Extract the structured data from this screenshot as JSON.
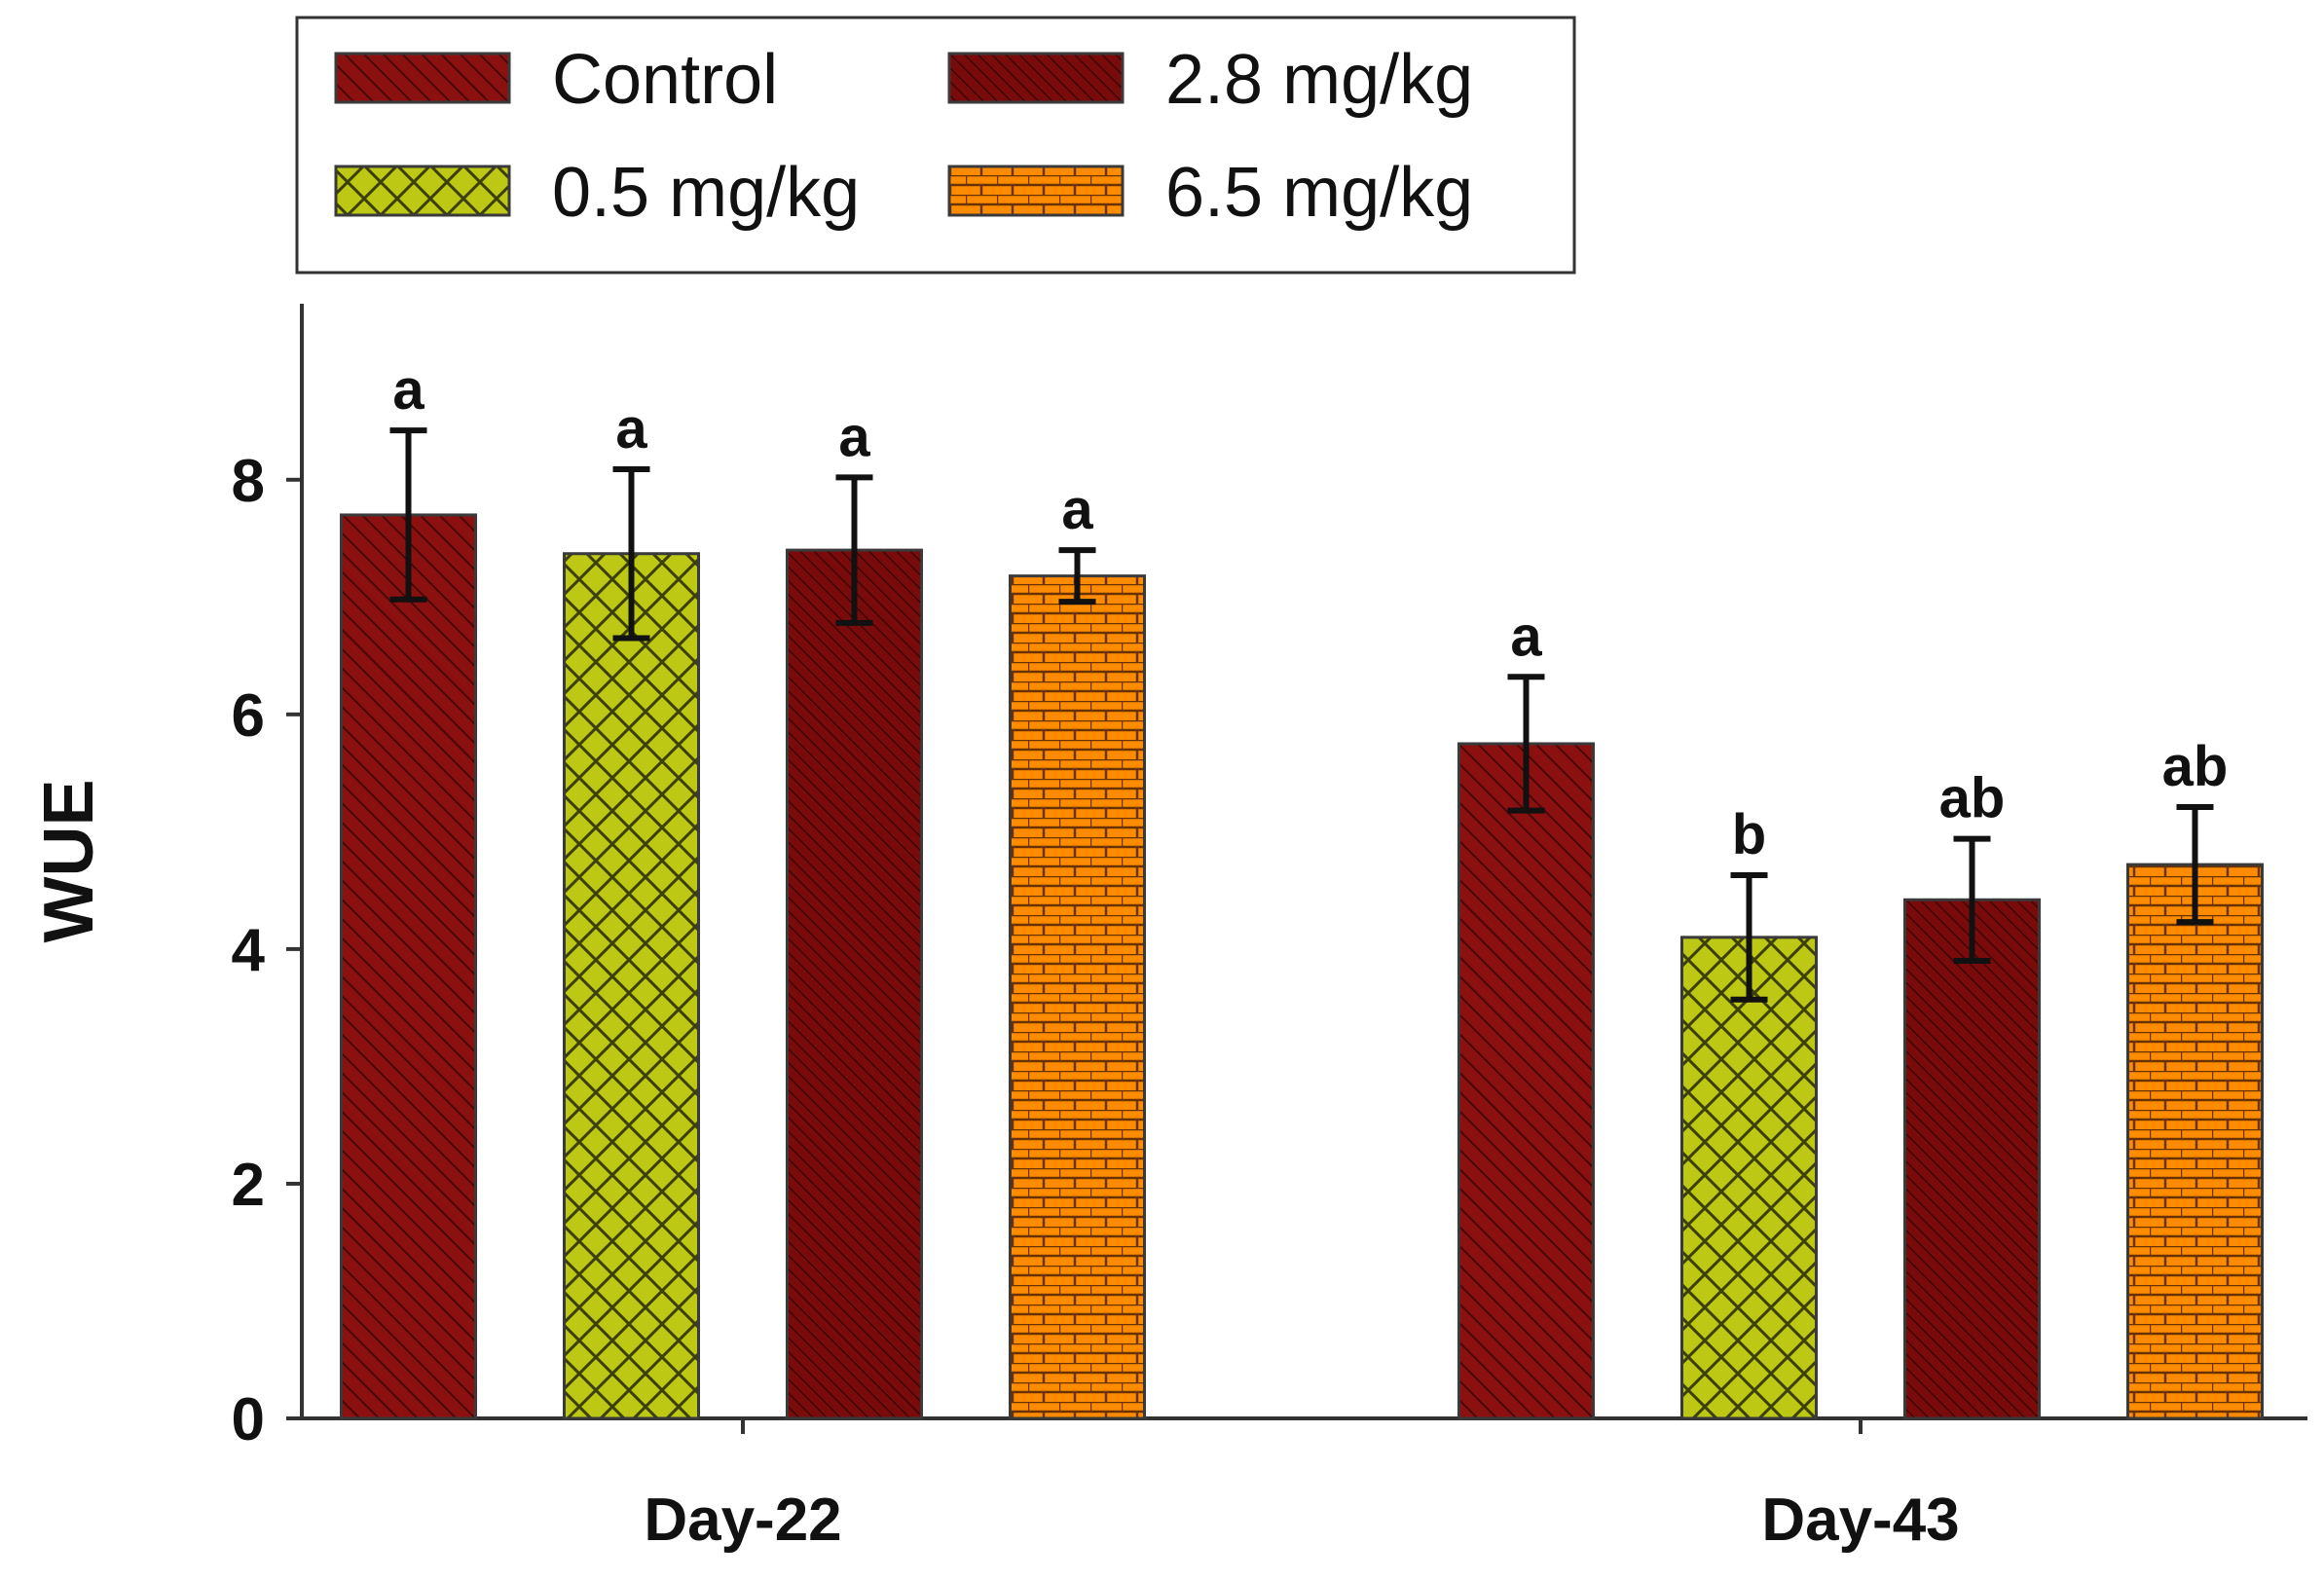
{
  "chart_data": {
    "type": "bar",
    "title": "",
    "xlabel": "",
    "ylabel": "WUE",
    "ylim": [
      0,
      9.5
    ],
    "yticks": [
      0,
      2,
      4,
      6,
      8
    ],
    "categories": [
      "Day-22",
      "Day-43"
    ],
    "grid": false,
    "legend_position": "top",
    "series": [
      {
        "name": "Control",
        "values": [
          7.7,
          5.75
        ],
        "errors": [
          0.72,
          0.57
        ],
        "labels": [
          "a",
          "a"
        ],
        "color": "#8b1111",
        "pattern": "diagonal"
      },
      {
        "name": "0.5 mg/kg",
        "values": [
          7.37,
          4.1
        ],
        "errors": [
          0.72,
          0.53
        ],
        "labels": [
          "a",
          "b"
        ],
        "color": "#bcc814",
        "pattern": "crosshatch"
      },
      {
        "name": "2.8 mg/kg",
        "values": [
          7.4,
          4.42
        ],
        "errors": [
          0.62,
          0.52
        ],
        "labels": [
          "a",
          "ab"
        ],
        "color": "#7a0b0b",
        "pattern": "dense-diagonal"
      },
      {
        "name": "6.5 mg/kg",
        "values": [
          7.18,
          4.72
        ],
        "errors": [
          0.22,
          0.49
        ],
        "labels": [
          "a",
          "ab"
        ],
        "color": "#ff8c00",
        "pattern": "brick"
      }
    ]
  }
}
